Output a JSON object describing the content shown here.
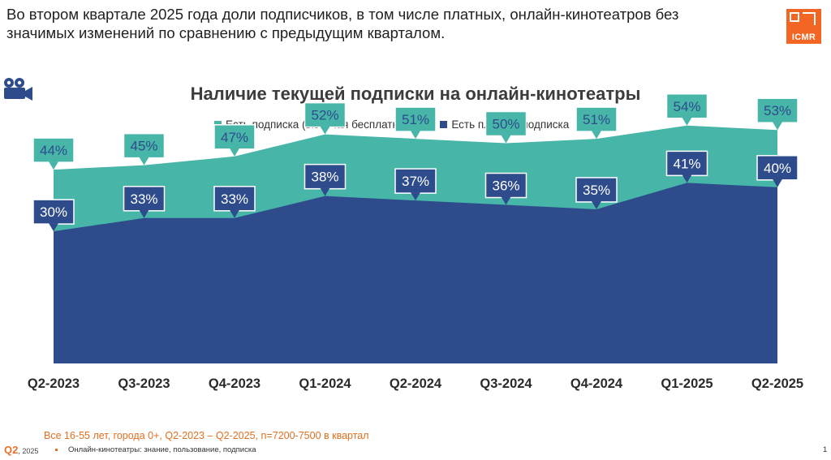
{
  "headline": "Во втором квартале 2025 года доли подписчиков, в том числе платных, онлайн-кинотеатров без значимых изменений по сравнению с предыдущим кварталом.",
  "logo_text": "ICMR",
  "colors": {
    "any_subscription": "#47b5a8",
    "paid_subscription": "#2e4c8c",
    "accent": "#f26522"
  },
  "chart_data": {
    "type": "area",
    "title": "Наличие текущей подписки на онлайн-кинотеатры",
    "categories": [
      "Q2-2023",
      "Q3-2023",
      "Q4-2023",
      "Q1-2024",
      "Q2-2024",
      "Q3-2024",
      "Q4-2024",
      "Q1-2025",
      "Q2-2025"
    ],
    "series": [
      {
        "name": "Есть подписка (включая бесплатную)",
        "values": [
          44,
          45,
          47,
          52,
          51,
          50,
          51,
          54,
          53
        ],
        "color": "#47b5a8"
      },
      {
        "name": "Есть платная  подписка",
        "values": [
          30,
          33,
          33,
          38,
          37,
          36,
          35,
          41,
          40
        ],
        "color": "#2e4c8c"
      }
    ],
    "value_suffix": "%",
    "ylim": [
      0,
      60
    ],
    "grid": false,
    "legend": "top-center"
  },
  "footer": {
    "sample_note": "Все 16-55 лет, города 0+, Q2-2023 – Q2-2025, n=7200-7500 в квартал",
    "quarter": "Q2",
    "year": ", 2025",
    "topic": "Онлайн-кинотеатры: знание, пользование, подписка",
    "page": "1"
  }
}
